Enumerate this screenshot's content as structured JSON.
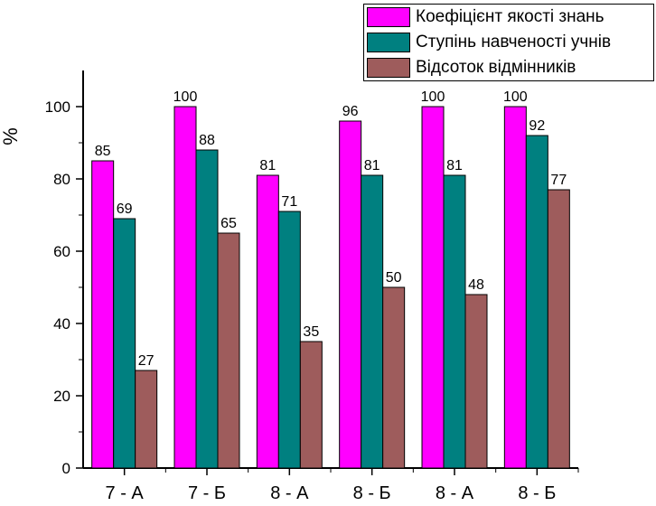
{
  "chart_data": {
    "type": "bar",
    "categories": [
      "7 - А",
      "7 - Б",
      "8 - А",
      "8 -  Б",
      "8 - А",
      "8 -  Б"
    ],
    "series": [
      {
        "name": "Коефіцієнт якості знань",
        "values": [
          85,
          100,
          81,
          96,
          100,
          100
        ],
        "color": "#ff00ff"
      },
      {
        "name": "Ступінь навченості учнів",
        "values": [
          69,
          88,
          71,
          81,
          81,
          92
        ],
        "color": "#008080"
      },
      {
        "name": "Відсоток відмінників",
        "values": [
          27,
          65,
          35,
          50,
          48,
          77
        ],
        "color": "#9e5c5c"
      }
    ],
    "ylabel": "%",
    "xlabel": "",
    "ylim": [
      0,
      110
    ],
    "yticks": [
      0,
      20,
      40,
      60,
      80,
      100
    ],
    "grid": false,
    "legend_position": "top-right"
  }
}
